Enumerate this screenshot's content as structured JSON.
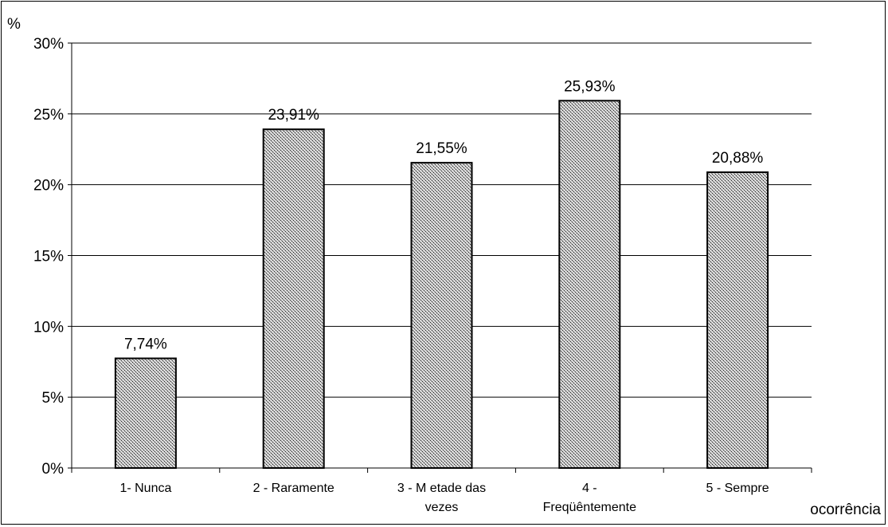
{
  "chart_data": {
    "type": "bar",
    "ylabel": "%",
    "xlabel": "ocorrência",
    "ylim": [
      0,
      30
    ],
    "y_ticks": [
      "0%",
      "5%",
      "10%",
      "15%",
      "20%",
      "25%",
      "30%"
    ],
    "categories": [
      [
        "1- Nunca"
      ],
      [
        "2 - Raramente"
      ],
      [
        "3 - M etade das",
        "vezes"
      ],
      [
        "4 -",
        "Freqüêntemente"
      ],
      [
        "5 - Sempre"
      ]
    ],
    "values": [
      7.74,
      23.91,
      21.55,
      25.93,
      20.88
    ],
    "value_labels": [
      "7,74%",
      "23,91%",
      "21,55%",
      "25,93%",
      "20,88%"
    ],
    "grid": true,
    "bar_fill": "dotted gray pattern"
  }
}
